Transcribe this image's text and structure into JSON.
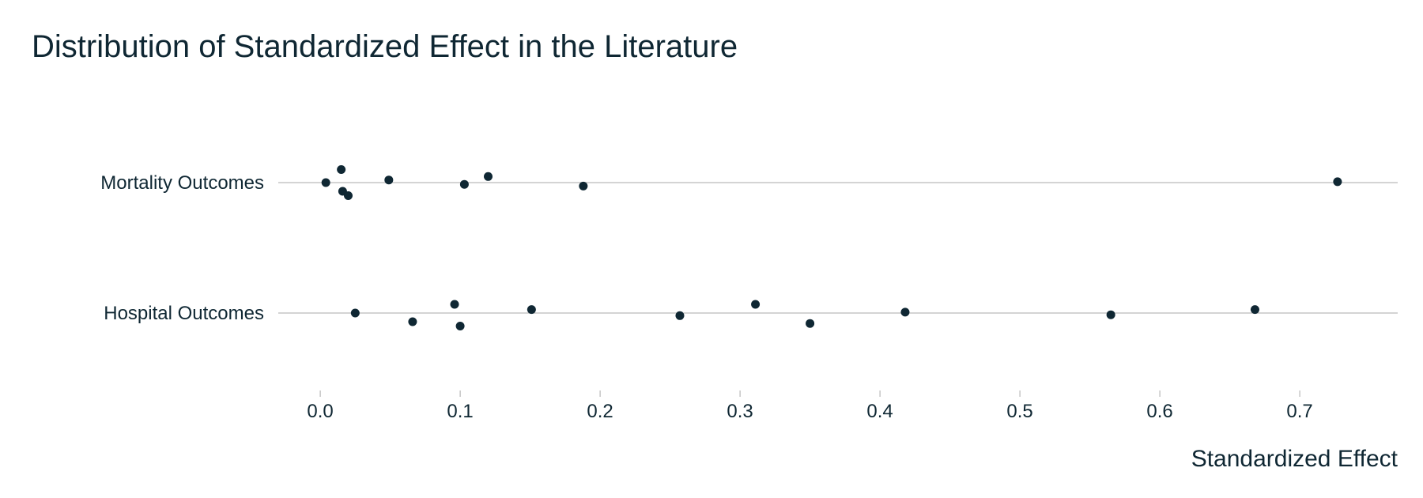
{
  "chart_data": {
    "type": "scatter",
    "title": "Distribution of Standardized Effect in the Literature",
    "xlabel": "Standardized Effect",
    "ylabel": "",
    "xlim": [
      -0.03,
      0.77
    ],
    "xticks": [
      "0.0",
      "0.1",
      "0.2",
      "0.3",
      "0.4",
      "0.5",
      "0.6",
      "0.7"
    ],
    "xtick_values": [
      0.0,
      0.1,
      0.2,
      0.3,
      0.4,
      0.5,
      0.6,
      0.7
    ],
    "grid": false,
    "categories": [
      "Mortality Outcomes",
      "Hospital Outcomes"
    ],
    "series": [
      {
        "values": [
          {
            "x": 0.004,
            "y": "Mortality Outcomes",
            "jitter": 0.0
          },
          {
            "x": 0.015,
            "y": "Mortality Outcomes",
            "jitter": 0.15
          },
          {
            "x": 0.016,
            "y": "Mortality Outcomes",
            "jitter": -0.1
          },
          {
            "x": 0.02,
            "y": "Mortality Outcomes",
            "jitter": -0.15
          },
          {
            "x": 0.049,
            "y": "Mortality Outcomes",
            "jitter": 0.03
          },
          {
            "x": 0.103,
            "y": "Mortality Outcomes",
            "jitter": -0.02
          },
          {
            "x": 0.12,
            "y": "Mortality Outcomes",
            "jitter": 0.07
          },
          {
            "x": 0.188,
            "y": "Mortality Outcomes",
            "jitter": -0.04
          },
          {
            "x": 0.727,
            "y": "Mortality Outcomes",
            "jitter": 0.01
          },
          {
            "x": 0.025,
            "y": "Hospital Outcomes",
            "jitter": 0.0
          },
          {
            "x": 0.066,
            "y": "Hospital Outcomes",
            "jitter": -0.1
          },
          {
            "x": 0.096,
            "y": "Hospital Outcomes",
            "jitter": 0.1
          },
          {
            "x": 0.1,
            "y": "Hospital Outcomes",
            "jitter": -0.15
          },
          {
            "x": 0.151,
            "y": "Hospital Outcomes",
            "jitter": 0.04
          },
          {
            "x": 0.257,
            "y": "Hospital Outcomes",
            "jitter": -0.03
          },
          {
            "x": 0.311,
            "y": "Hospital Outcomes",
            "jitter": 0.1
          },
          {
            "x": 0.35,
            "y": "Hospital Outcomes",
            "jitter": -0.12
          },
          {
            "x": 0.418,
            "y": "Hospital Outcomes",
            "jitter": 0.01
          },
          {
            "x": 0.565,
            "y": "Hospital Outcomes",
            "jitter": -0.02
          },
          {
            "x": 0.668,
            "y": "Hospital Outcomes",
            "jitter": 0.04
          }
        ]
      }
    ],
    "point_color": "#0f2733",
    "reference_line_color": "#a9a9a9"
  }
}
